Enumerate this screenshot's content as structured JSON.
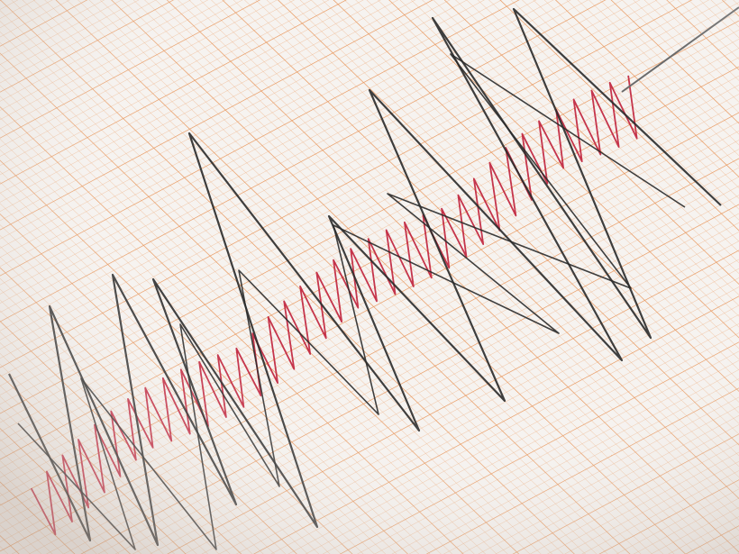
{
  "image": {
    "subject": "seismograph",
    "colors": {
      "paper": "#f6f3f0",
      "grid": "#e8955a",
      "grid_minor": "#f0b58a",
      "black_trace": "#2a2a2a",
      "red_trace": "#c0203a",
      "needle": "#6a6a6a"
    }
  }
}
